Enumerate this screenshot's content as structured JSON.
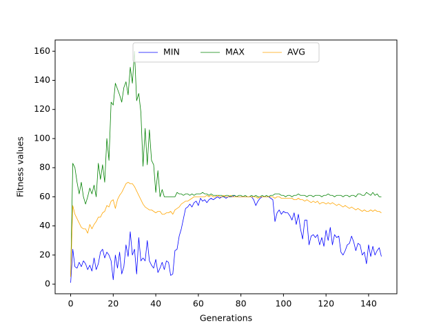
{
  "chart_data": {
    "type": "line",
    "xlabel": "Generations",
    "ylabel": "Fitness values",
    "x": [
      0,
      1,
      2,
      3,
      4,
      5,
      6,
      7,
      8,
      9,
      10,
      11,
      12,
      13,
      14,
      15,
      16,
      17,
      18,
      19,
      20,
      21,
      22,
      23,
      24,
      25,
      26,
      27,
      28,
      29,
      30,
      31,
      32,
      33,
      34,
      35,
      36,
      37,
      38,
      39,
      40,
      41,
      42,
      43,
      44,
      45,
      46,
      47,
      48,
      49,
      50,
      51,
      52,
      53,
      54,
      55,
      56,
      57,
      58,
      59,
      60,
      61,
      62,
      63,
      64,
      65,
      66,
      67,
      68,
      69,
      70,
      71,
      72,
      73,
      74,
      75,
      76,
      77,
      78,
      79,
      80,
      81,
      82,
      83,
      84,
      85,
      86,
      87,
      88,
      89,
      90,
      91,
      92,
      93,
      94,
      95,
      96,
      97,
      98,
      99,
      100,
      101,
      102,
      103,
      104,
      105,
      106,
      107,
      108,
      109,
      110,
      111,
      112,
      113,
      114,
      115,
      116,
      117,
      118,
      119,
      120,
      121,
      122,
      123,
      124,
      125,
      126,
      127,
      128,
      129,
      130,
      131,
      132,
      133,
      134,
      135,
      136,
      137,
      138,
      139,
      140,
      141,
      142,
      143,
      144,
      145,
      146
    ],
    "series": [
      {
        "name": "MIN",
        "color": "#0000ff",
        "values": [
          1,
          24,
          12,
          11,
          15,
          12,
          16,
          14,
          10,
          13,
          9,
          18,
          10,
          14,
          22,
          24,
          18,
          22,
          20,
          16,
          3,
          20,
          11,
          22,
          7,
          12,
          27,
          19,
          36,
          20,
          24,
          7,
          32,
          16,
          18,
          16,
          30,
          16,
          13,
          11,
          17,
          8,
          11,
          15,
          10,
          16,
          15,
          6,
          7,
          23,
          24,
          33,
          38,
          45,
          52,
          53,
          55,
          53,
          56,
          57,
          54,
          59,
          57,
          58,
          56,
          58,
          59,
          58,
          59,
          60,
          59,
          60,
          60,
          59,
          60,
          60,
          60,
          61,
          60,
          60,
          60,
          60,
          60,
          60,
          60,
          60,
          58,
          54,
          57,
          59,
          60,
          60,
          60,
          60,
          59,
          58,
          43,
          49,
          51,
          48,
          50,
          49,
          49,
          47,
          44,
          49,
          41,
          48,
          38,
          31,
          44,
          44,
          27,
          33,
          34,
          32,
          34,
          27,
          32,
          26,
          37,
          30,
          39,
          27,
          34,
          32,
          33,
          22,
          20,
          23,
          27,
          28,
          33,
          29,
          23,
          28,
          27,
          20,
          22,
          14,
          27,
          19,
          26,
          20,
          23,
          25,
          19
        ]
      },
      {
        "name": "MAX",
        "color": "#008000",
        "values": [
          5,
          83,
          80,
          70,
          62,
          70,
          60,
          55,
          60,
          66,
          62,
          68,
          60,
          83,
          72,
          82,
          70,
          100,
          85,
          125,
          123,
          138,
          134,
          130,
          125,
          135,
          139,
          130,
          149,
          138,
          160,
          126,
          131,
          118,
          81,
          107,
          82,
          106,
          85,
          82,
          63,
          78,
          60,
          65,
          60,
          60,
          60,
          60,
          60,
          60,
          63,
          62,
          62,
          61,
          62,
          62,
          61,
          62,
          61,
          62,
          62,
          62,
          63,
          62,
          62,
          61,
          62,
          61,
          61,
          61,
          61,
          61,
          60,
          61,
          61,
          60,
          61,
          61,
          60,
          61,
          61,
          60,
          61,
          60,
          60,
          61,
          60,
          61,
          60,
          60,
          61,
          60,
          61,
          60,
          61,
          61,
          62,
          62,
          62,
          61,
          61,
          60,
          61,
          61,
          60,
          61,
          61,
          62,
          61,
          61,
          61,
          60,
          61,
          61,
          60,
          61,
          61,
          61,
          60,
          61,
          61,
          62,
          61,
          61,
          60,
          61,
          61,
          61,
          60,
          61,
          61,
          60,
          61,
          61,
          60,
          62,
          62,
          61,
          61,
          63,
          62,
          61,
          63,
          61,
          62,
          60,
          60
        ]
      },
      {
        "name": "AVG",
        "color": "#ffa500",
        "values": [
          5,
          54,
          48,
          45,
          42,
          39,
          38,
          38,
          35,
          41,
          38,
          41,
          43,
          46,
          46,
          49,
          50,
          54,
          53,
          57,
          58,
          52,
          58,
          61,
          63,
          66,
          69,
          70,
          69,
          69,
          67,
          64,
          61,
          58,
          55,
          53,
          52,
          51,
          51,
          50,
          49,
          50,
          50,
          48,
          48,
          49,
          49,
          50,
          48,
          51,
          52,
          53,
          55,
          56,
          57,
          57,
          58,
          59,
          60,
          60,
          60,
          60,
          60,
          60,
          61,
          60,
          61,
          60,
          60,
          61,
          60,
          60,
          61,
          60,
          60,
          61,
          60,
          60,
          60,
          60,
          60,
          60,
          60,
          60,
          60,
          60,
          60,
          60,
          59,
          60,
          60,
          60,
          60,
          60,
          60,
          60,
          59,
          60,
          60,
          59,
          59,
          59,
          59,
          59,
          59,
          58,
          58,
          59,
          58,
          58,
          57,
          58,
          57,
          56,
          57,
          56,
          57,
          55,
          56,
          56,
          55,
          56,
          55,
          56,
          55,
          54,
          55,
          54,
          53,
          54,
          53,
          52,
          53,
          52,
          51,
          52,
          51,
          50,
          51,
          50,
          50,
          51,
          50,
          51,
          50,
          50,
          49
        ]
      }
    ],
    "xlim": [
      -7.3,
      153.3
    ],
    "xticks": [
      0,
      20,
      40,
      60,
      80,
      100,
      120,
      140
    ],
    "ylim": [
      -6.6,
      167.7
    ],
    "yticks": [
      0,
      20,
      40,
      60,
      80,
      100,
      120,
      140,
      160
    ],
    "legend": "upper center",
    "legend_columns": 3
  }
}
